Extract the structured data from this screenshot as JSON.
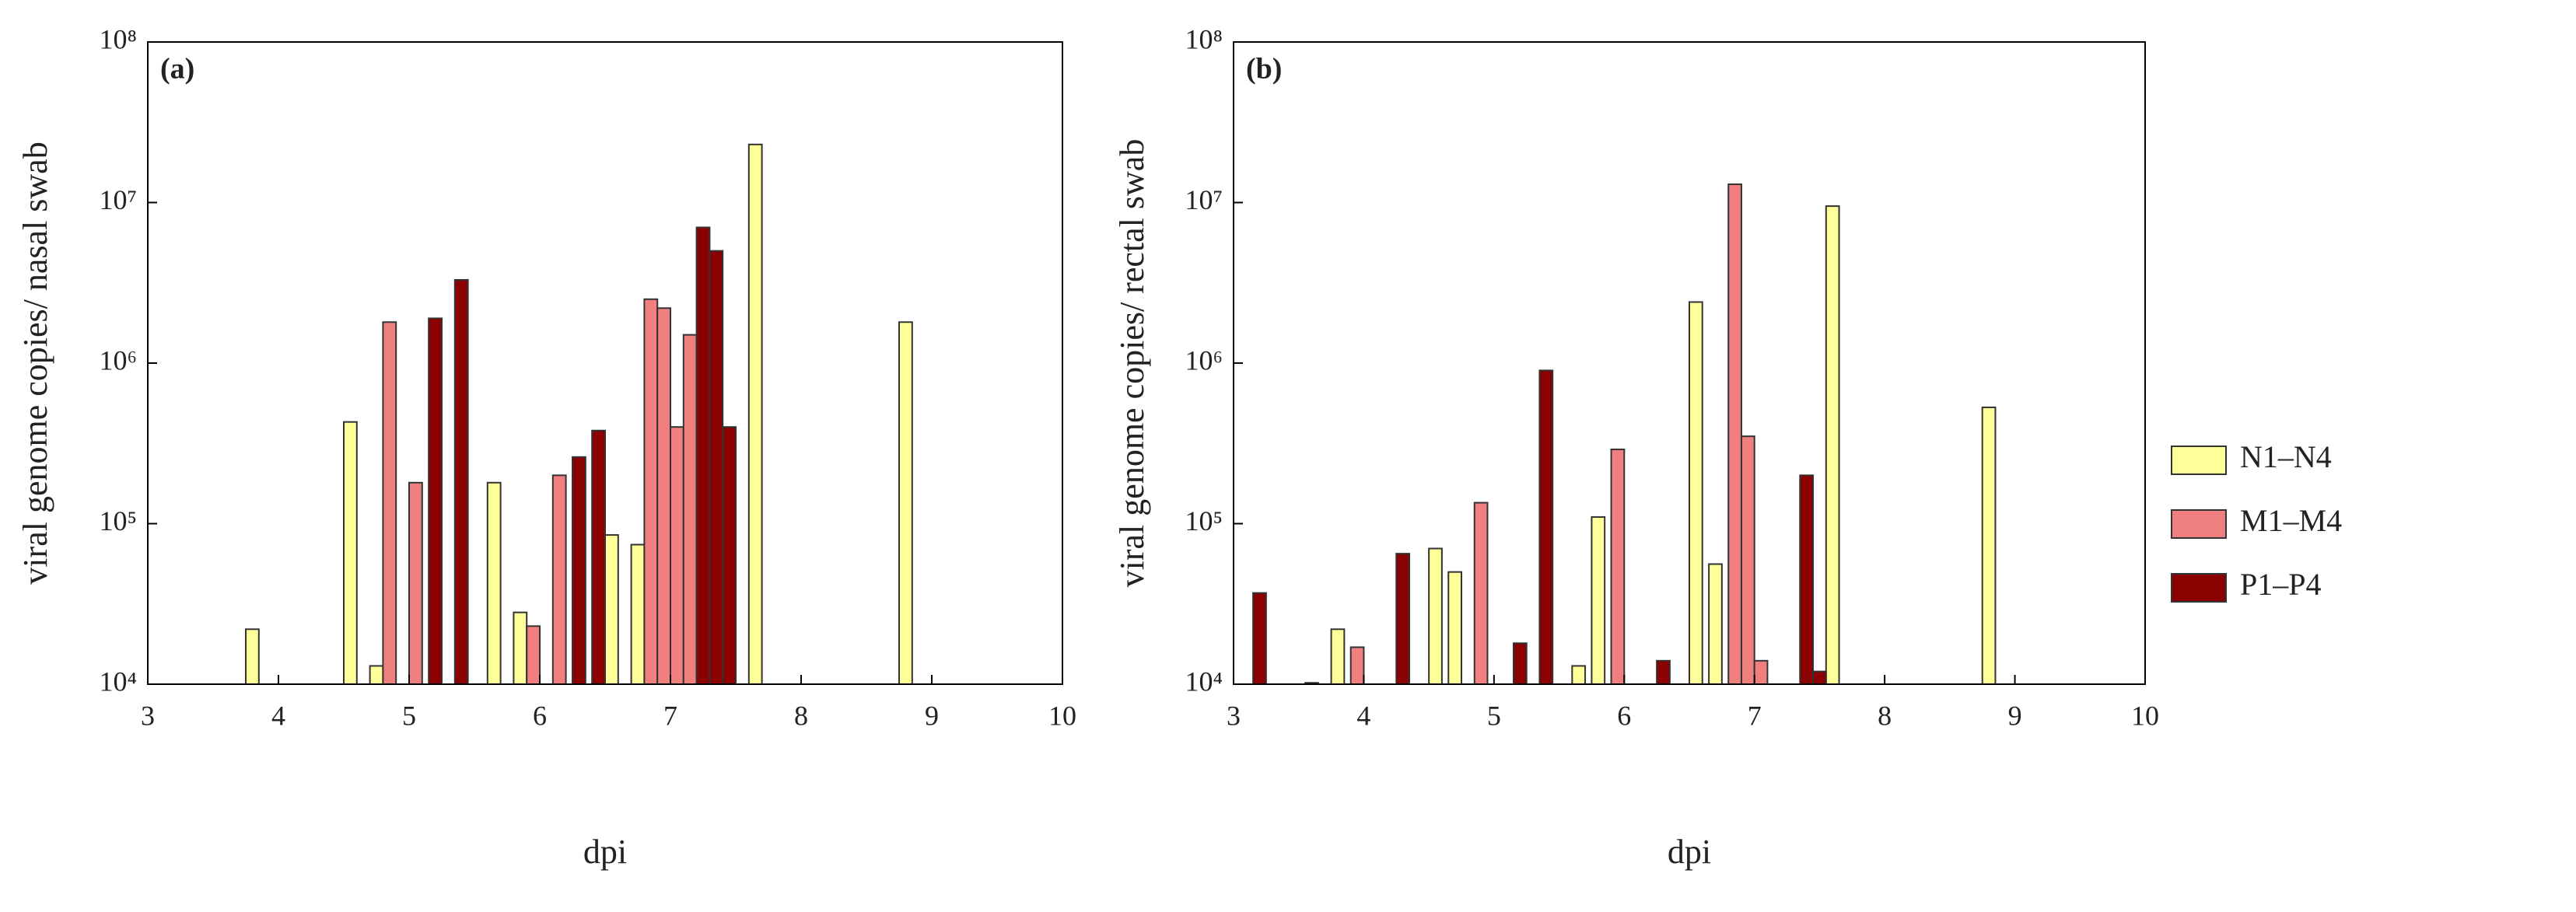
{
  "chart_data": [
    {
      "type": "bar",
      "annotation": "(a)",
      "xlabel": "dpi",
      "ylabel": "viral genome copies/ nasal swab",
      "xlim": [
        3,
        10
      ],
      "xticks": [
        3,
        4,
        5,
        6,
        7,
        8,
        9,
        10
      ],
      "ylim": [
        10000,
        100000000
      ],
      "ylog": true,
      "yticks": [
        {
          "value": 10000,
          "label": "10⁴"
        },
        {
          "value": 100000,
          "label": "10⁵"
        },
        {
          "value": 1000000,
          "label": "10⁶"
        },
        {
          "value": 10000000,
          "label": "10⁷"
        },
        {
          "value": 100000000,
          "label": "10⁸"
        }
      ],
      "series": [
        {
          "color": "#ffff99",
          "x": [
            3.8,
            4.55,
            4.75,
            5.65,
            5.85,
            6.55,
            6.75,
            7.65,
            8.8
          ],
          "values": [
            22000,
            430000,
            13000,
            180000,
            28000,
            85000,
            74000,
            23000000,
            1800000
          ]
        },
        {
          "color": "#f08080",
          "x": [
            4.85,
            5.05,
            5.95,
            6.15,
            6.85,
            6.95,
            7.05,
            7.15
          ],
          "values": [
            1800000,
            180000,
            23000,
            200000,
            2500000,
            2200000,
            400000,
            1500000
          ]
        },
        {
          "color": "#8b0000",
          "x": [
            5.2,
            5.4,
            6.3,
            6.45,
            7.25,
            7.35,
            7.45
          ],
          "values": [
            1900000,
            3300000,
            260000,
            380000,
            7000000,
            5000000,
            400000
          ]
        }
      ]
    },
    {
      "type": "bar",
      "annotation": "(b)",
      "xlabel": "dpi",
      "ylabel": "viral genome copies/ rectal swab",
      "xlim": [
        3,
        10
      ],
      "xticks": [
        3,
        4,
        5,
        6,
        7,
        8,
        9,
        10
      ],
      "ylim": [
        10000,
        100000000
      ],
      "ylog": true,
      "yticks": [
        {
          "value": 10000,
          "label": "10⁴"
        },
        {
          "value": 100000,
          "label": "10⁵"
        },
        {
          "value": 1000000,
          "label": "10⁶"
        },
        {
          "value": 10000000,
          "label": "10⁷"
        },
        {
          "value": 100000000,
          "label": "10⁸"
        }
      ],
      "legend": "right",
      "series": [
        {
          "name": "N1–N4",
          "color": "#ffff99",
          "x": [
            3.8,
            4.55,
            4.7,
            5.65,
            5.8,
            6.55,
            6.7,
            7.6,
            8.8
          ],
          "values": [
            22000,
            70000,
            50000,
            13000,
            110000,
            2400000,
            56000,
            9500000,
            530000
          ]
        },
        {
          "name": "M1–M4",
          "color": "#f08080",
          "x": [
            3.95,
            4.9,
            5.95,
            6.85,
            6.95,
            7.05
          ],
          "values": [
            17000,
            135000,
            290000,
            13000000,
            350000,
            14000
          ]
        },
        {
          "name": "P1–P4",
          "color": "#8b0000",
          "x": [
            3.2,
            3.6,
            4.3,
            5.2,
            5.4,
            6.3,
            7.4,
            7.5
          ],
          "values": [
            37000,
            10200,
            65000,
            18000,
            900000,
            14000,
            200000,
            12000
          ]
        }
      ]
    }
  ]
}
